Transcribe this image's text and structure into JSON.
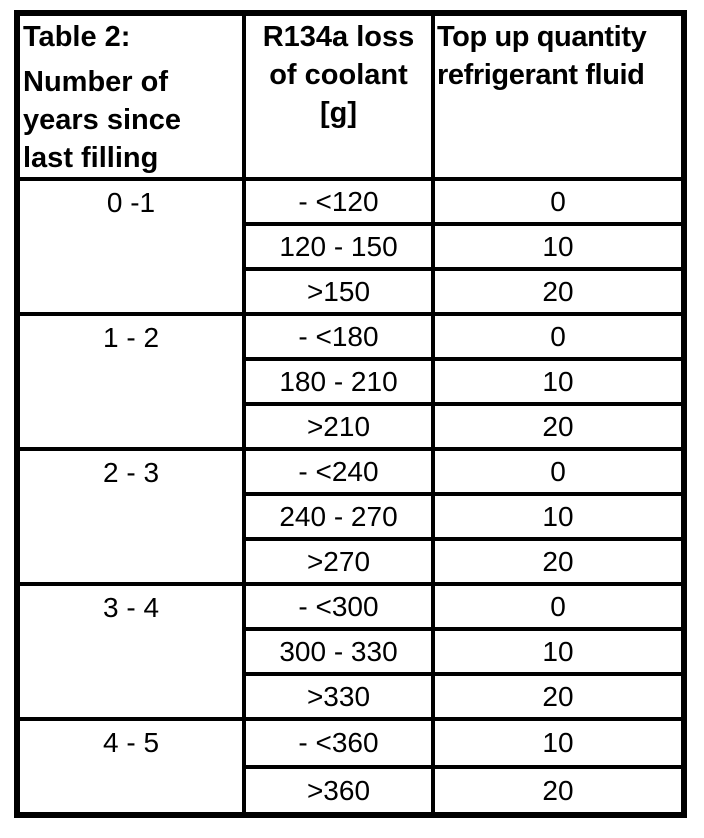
{
  "colors": {
    "border": "#000000",
    "background": "#ffffff",
    "text": "#000000"
  },
  "table": {
    "header": {
      "title": "Table 2:",
      "col1_lines": [
        "Number of",
        "years since",
        "last filling"
      ],
      "col2_lines": [
        "R134a loss",
        "of coolant",
        "[g]"
      ],
      "col3_lines": [
        "Top up quantity",
        "refrigerant fluid"
      ]
    },
    "groups": [
      {
        "years": "0 -1",
        "rows": [
          [
            "- <120",
            "0"
          ],
          [
            "120 - 150",
            "10"
          ],
          [
            ">150",
            "20"
          ]
        ]
      },
      {
        "years": "1 - 2",
        "rows": [
          [
            "- <180",
            "0"
          ],
          [
            "180 - 210",
            "10"
          ],
          [
            ">210",
            "20"
          ]
        ]
      },
      {
        "years": "2 - 3",
        "rows": [
          [
            "- <240",
            "0"
          ],
          [
            "240 - 270",
            "10"
          ],
          [
            ">270",
            "20"
          ]
        ]
      },
      {
        "years": "3 - 4",
        "rows": [
          [
            "- <300",
            "0"
          ],
          [
            "300 - 330",
            "10"
          ],
          [
            ">330",
            "20"
          ]
        ]
      },
      {
        "years": "4 - 5",
        "rows": [
          [
            "- <360",
            "10"
          ],
          [
            ">360",
            "20"
          ]
        ]
      }
    ]
  }
}
